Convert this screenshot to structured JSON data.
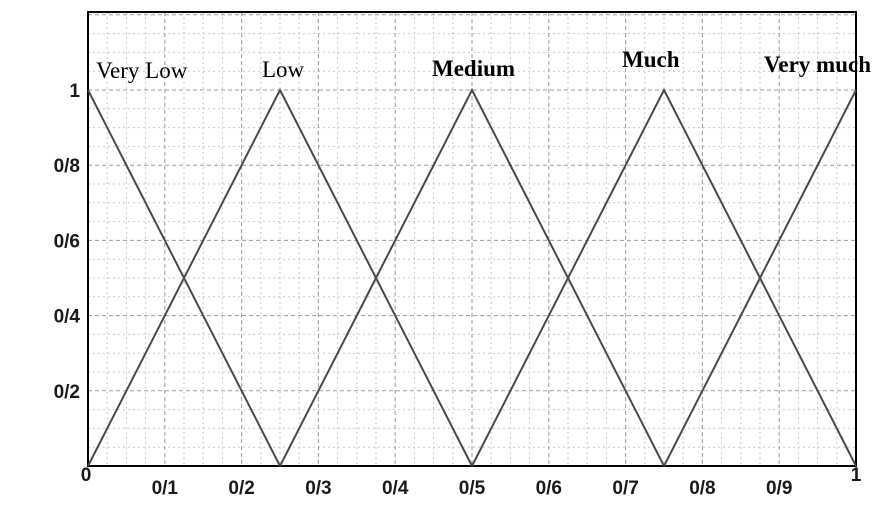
{
  "chart_data": {
    "type": "line",
    "xlim": [
      0,
      1
    ],
    "ylim": [
      0,
      1
    ],
    "grid": true,
    "x_ticks": [
      {
        "value": 0,
        "label": "0"
      },
      {
        "value": 0.1,
        "label": "0/1"
      },
      {
        "value": 0.2,
        "label": "0/2"
      },
      {
        "value": 0.3,
        "label": "0/3"
      },
      {
        "value": 0.4,
        "label": "0/4"
      },
      {
        "value": 0.5,
        "label": "0/5"
      },
      {
        "value": 0.6,
        "label": "0/6"
      },
      {
        "value": 0.7,
        "label": "0/7"
      },
      {
        "value": 0.8,
        "label": "0/8"
      },
      {
        "value": 0.9,
        "label": "0/9"
      },
      {
        "value": 1,
        "label": "1"
      }
    ],
    "y_ticks": [
      {
        "value": 1,
        "label": "1"
      },
      {
        "value": 0.8,
        "label": "0/8"
      },
      {
        "value": 0.6,
        "label": "0/6"
      },
      {
        "value": 0.4,
        "label": "0/4"
      },
      {
        "value": 0.2,
        "label": "0/2"
      }
    ],
    "series": [
      {
        "name": "Very Low",
        "points": [
          [
            0,
            1
          ],
          [
            0.25,
            0
          ]
        ]
      },
      {
        "name": "Low",
        "points": [
          [
            0,
            0
          ],
          [
            0.25,
            1
          ],
          [
            0.5,
            0
          ]
        ]
      },
      {
        "name": "Medium",
        "points": [
          [
            0.25,
            0
          ],
          [
            0.5,
            1
          ],
          [
            0.75,
            0
          ]
        ]
      },
      {
        "name": "Much",
        "points": [
          [
            0.5,
            0
          ],
          [
            0.75,
            1
          ],
          [
            1,
            0
          ]
        ]
      },
      {
        "name": "Very much",
        "points": [
          [
            0.75,
            0
          ],
          [
            1,
            1
          ]
        ]
      }
    ],
    "line_color": "#4a4a4a"
  }
}
